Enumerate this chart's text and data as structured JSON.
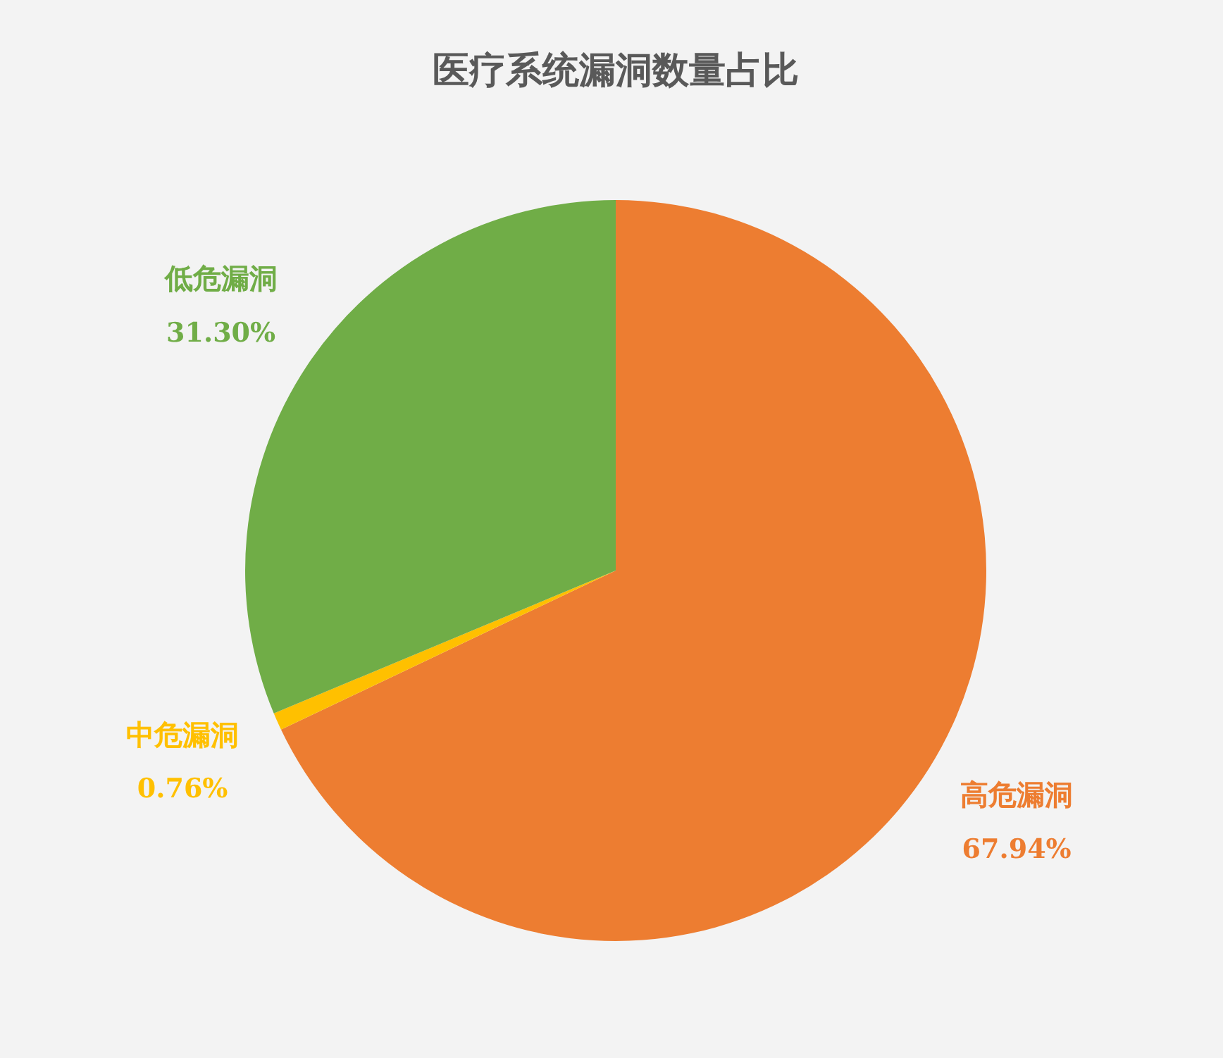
{
  "chart_data": {
    "type": "pie",
    "title": "医疗系统漏洞数量占比",
    "categories": [
      "高危漏洞",
      "中危漏洞",
      "低危漏洞"
    ],
    "values": [
      67.94,
      0.76,
      31.3
    ],
    "value_labels": [
      "67.94%",
      "0.76%",
      "31.30%"
    ],
    "colors": [
      "#ed7d31",
      "#ffc000",
      "#70ad47"
    ]
  }
}
